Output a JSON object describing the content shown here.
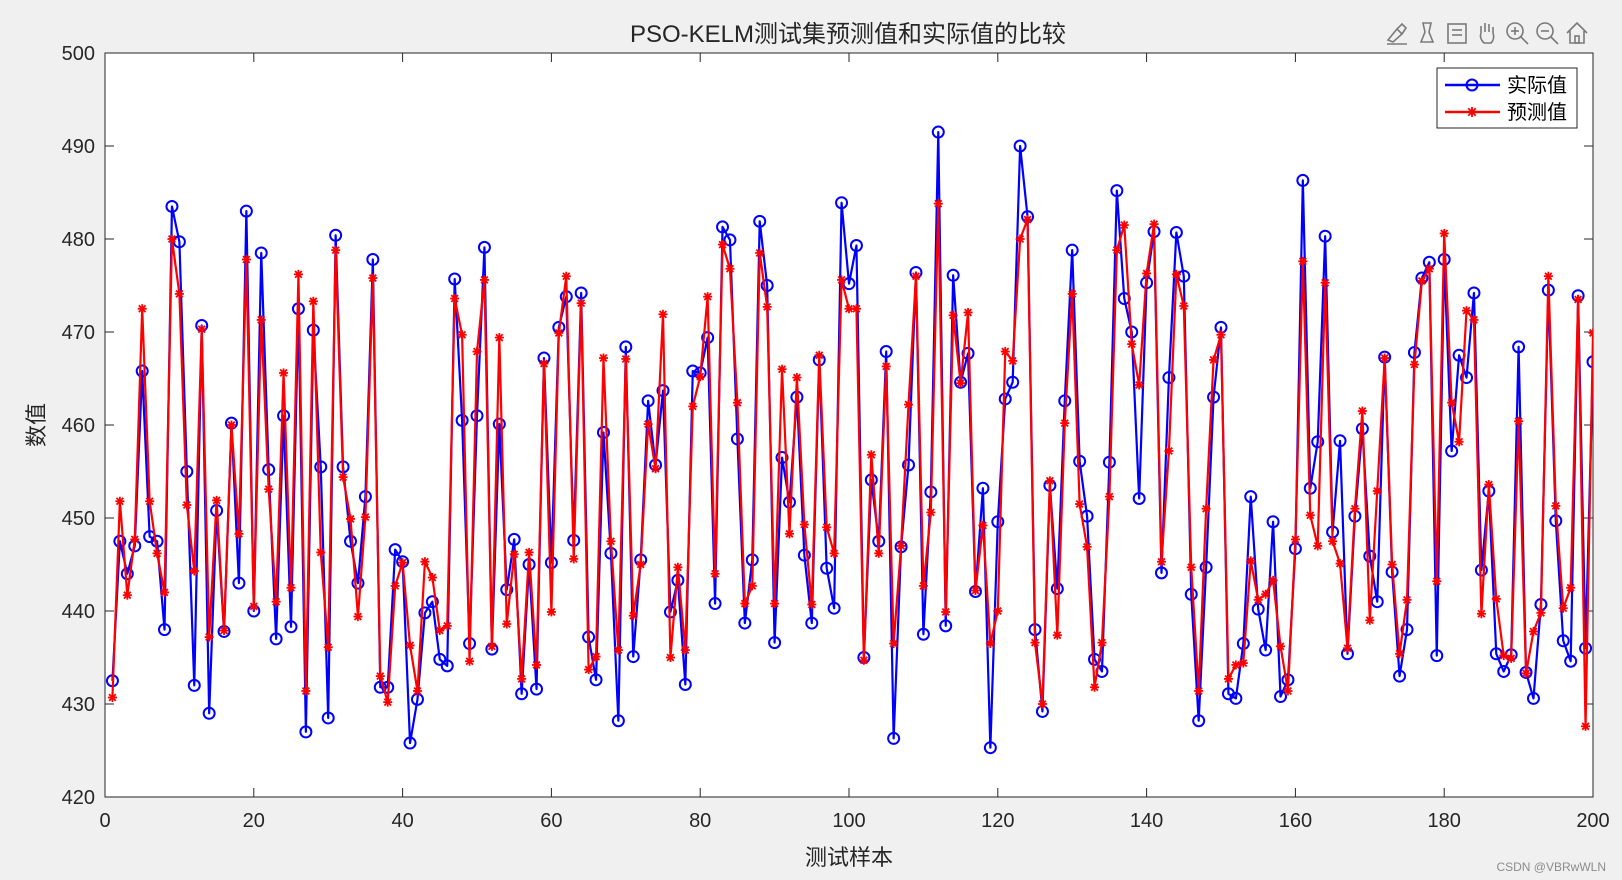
{
  "watermark": "CSDN @VBRwWLN",
  "toolbar": {
    "icons": [
      "brush-icon",
      "data-tips-icon",
      "edit-icon",
      "pan-icon",
      "zoom-in-icon",
      "zoom-out-icon",
      "home-icon"
    ]
  },
  "chart_data": {
    "type": "line",
    "title": "PSO-KELM测试集预测值和实际值的比较",
    "xlabel": "测试样本",
    "ylabel": "数值",
    "xlim": [
      0,
      200
    ],
    "ylim": [
      420,
      500
    ],
    "xticks": [
      "0",
      "20",
      "40",
      "60",
      "80",
      "100",
      "120",
      "140",
      "160",
      "180",
      "200"
    ],
    "yticks": [
      "420",
      "430",
      "440",
      "450",
      "460",
      "470",
      "480",
      "490",
      "500"
    ],
    "grid": false,
    "legend": "top-right",
    "x": [
      1,
      2,
      3,
      4,
      5,
      6,
      7,
      8,
      9,
      10,
      11,
      12,
      13,
      14,
      15,
      16,
      17,
      18,
      19,
      20,
      21,
      22,
      23,
      24,
      25,
      26,
      27,
      28,
      29,
      30,
      31,
      32,
      33,
      34,
      35,
      36,
      37,
      38,
      39,
      40,
      41,
      42,
      43,
      44,
      45,
      46,
      47,
      48,
      49,
      50,
      51,
      52,
      53,
      54,
      55,
      56,
      57,
      58,
      59,
      60,
      61,
      62,
      63,
      64,
      65,
      66,
      67,
      68,
      69,
      70,
      71,
      72,
      73,
      74,
      75,
      76,
      77,
      78,
      79,
      80,
      81,
      82,
      83,
      84,
      85,
      86,
      87,
      88,
      89,
      90,
      91,
      92,
      93,
      94,
      95,
      96,
      97,
      98,
      99,
      100,
      101,
      102,
      103,
      104,
      105,
      106,
      107,
      108,
      109,
      110,
      111,
      112,
      113,
      114,
      115,
      116,
      117,
      118,
      119,
      120,
      121,
      122,
      123,
      124,
      125,
      126,
      127,
      128,
      129,
      130,
      131,
      132,
      133,
      134,
      135,
      136,
      137,
      138,
      139,
      140,
      141,
      142,
      143,
      144,
      145,
      146,
      147,
      148,
      149,
      150,
      151,
      152,
      153,
      154,
      155,
      156,
      157,
      158,
      159,
      160,
      161,
      162,
      163,
      164,
      165,
      166,
      167,
      168,
      169,
      170,
      171,
      172,
      173,
      174,
      175,
      176,
      177,
      178,
      179,
      180,
      181,
      182,
      183,
      184,
      185,
      186,
      187,
      188,
      189,
      190,
      191,
      192,
      193,
      194,
      195,
      196,
      197,
      198,
      199,
      200
    ],
    "series": [
      {
        "name": "实际值",
        "color": "#0000ff",
        "marker": "circle",
        "values": [
          432.5,
          447.5,
          444,
          447,
          465.8,
          448,
          447.5,
          438,
          483.5,
          479.7,
          455,
          432,
          470.7,
          429,
          450.8,
          437.8,
          460.2,
          443,
          483,
          440,
          478.5,
          455.2,
          437,
          461,
          438.3,
          472.5,
          427,
          470.2,
          455.5,
          428.5,
          480.4,
          455.5,
          447.5,
          443,
          452.3,
          477.8,
          431.8,
          431.8,
          446.6,
          445.3,
          425.8,
          430.5,
          439.8,
          441,
          434.8,
          434.1,
          475.7,
          460.5,
          436.5,
          461,
          479.1,
          435.9,
          460.1,
          442.3,
          447.7,
          431.1,
          445,
          431.6,
          467.2,
          445.2,
          470.5,
          473.8,
          447.6,
          474.2,
          437.2,
          432.6,
          459.2,
          446.2,
          428.2,
          468.4,
          435.1,
          445.5,
          462.6,
          455.7,
          463.7,
          439.9,
          443.3,
          432.1,
          465.8,
          465.6,
          469.4,
          440.8,
          481.3,
          479.9,
          458.5,
          438.7,
          445.5,
          481.9,
          475,
          436.6,
          456.5,
          451.7,
          463,
          446,
          438.7,
          467,
          444.6,
          440.3,
          483.9,
          475.2,
          479.3,
          435,
          454.1,
          447.5,
          467.9,
          426.3,
          446.9,
          455.7,
          476.4,
          437.5,
          452.8,
          491.5,
          438.4,
          476.1,
          464.6,
          467.7,
          442.1,
          453.2,
          425.3,
          449.6,
          462.8,
          464.6,
          490,
          482.4,
          438,
          429.2,
          453.5,
          442.4,
          462.6,
          478.8,
          456.1,
          450.2,
          434.8,
          433.5,
          456,
          485.2,
          473.6,
          470,
          452.1,
          475.3,
          480.8,
          444.1,
          465.1,
          480.7,
          476,
          441.8,
          428.2,
          444.7,
          463,
          470.5,
          431.1,
          430.6,
          436.5,
          452.3,
          440.2,
          435.8,
          449.6,
          430.8,
          432.6,
          446.7,
          486.3,
          453.2,
          458.2,
          480.3,
          448.5,
          458.3,
          435.4,
          450.2,
          459.6,
          445.9,
          441,
          467.3,
          444.2,
          433,
          438,
          467.8,
          475.8,
          477.5,
          435.2,
          477.8,
          457.2,
          467.5,
          465.1,
          474.2,
          444.4,
          452.9,
          435.4,
          433.5,
          435.3,
          468.4,
          433.4,
          430.6,
          440.7,
          474.5,
          449.7,
          436.8,
          434.6,
          473.9,
          436,
          466.8
        ]
      },
      {
        "name": "预测值",
        "color": "#ff0000",
        "marker": "asterisk",
        "values": [
          430.7,
          451.8,
          441.7,
          447.7,
          472.5,
          451.8,
          446.2,
          442,
          480,
          474.1,
          451.4,
          444.3,
          470.3,
          437.2,
          451.9,
          437.9,
          460,
          448.3,
          477.8,
          440.5,
          471.3,
          453.1,
          441,
          465.6,
          442.5,
          476.2,
          431.4,
          473.3,
          446.3,
          436.1,
          478.8,
          454.4,
          449.9,
          439.4,
          450.1,
          475.8,
          433,
          430.2,
          442.7,
          445.2,
          436.3,
          431.4,
          445.3,
          443.6,
          437.9,
          438.4,
          473.6,
          469.7,
          434.6,
          467.9,
          475.6,
          436.2,
          469.4,
          438.6,
          446.1,
          432.7,
          446.3,
          434.2,
          466.6,
          439.9,
          469.9,
          476,
          445.6,
          473.1,
          433.7,
          435.1,
          467.2,
          447.5,
          435.8,
          467.1,
          439.5,
          445,
          460.1,
          455.3,
          471.9,
          435,
          444.7,
          435.8,
          462,
          465.2,
          473.8,
          444,
          479.4,
          476.8,
          462.4,
          440.8,
          442.7,
          478.5,
          472.7,
          440.8,
          466,
          448.3,
          465.1,
          449.3,
          440.7,
          467.5,
          449,
          446.2,
          475.6,
          472.5,
          472.5,
          434.7,
          456.8,
          446.2,
          466.3,
          436.5,
          447,
          462.2,
          476,
          442.7,
          450.6,
          483.8,
          439.9,
          471.8,
          464.5,
          472.1,
          442.2,
          449.2,
          436.5,
          440,
          467.9,
          466.9,
          480,
          482.1,
          436.6,
          430,
          454,
          437.4,
          460.2,
          474.1,
          451.5,
          446.9,
          431.8,
          436.6,
          452.3,
          478.8,
          481.5,
          468.7,
          464.3,
          476.3,
          481.6,
          445.3,
          457.2,
          476.2,
          472.8,
          444.7,
          431.4,
          451,
          467,
          469.7,
          432.7,
          434.2,
          434.4,
          445.4,
          441.2,
          441.8,
          443.3,
          436.2,
          431.4,
          447.7,
          477.6,
          450.3,
          447,
          475.3,
          447.5,
          445.1,
          436,
          451,
          461.5,
          439,
          452.9,
          467.2,
          445,
          435.4,
          441.2,
          466.5,
          475.5,
          476.8,
          443.2,
          480.6,
          462.4,
          458.2,
          472.3,
          471.3,
          439.7,
          453.6,
          441.3,
          435.2,
          434.9,
          460.4,
          433.3,
          437.8,
          439.8,
          476,
          451.3,
          440.3,
          442.5,
          473.5,
          427.6,
          469.9
        ]
      }
    ]
  }
}
